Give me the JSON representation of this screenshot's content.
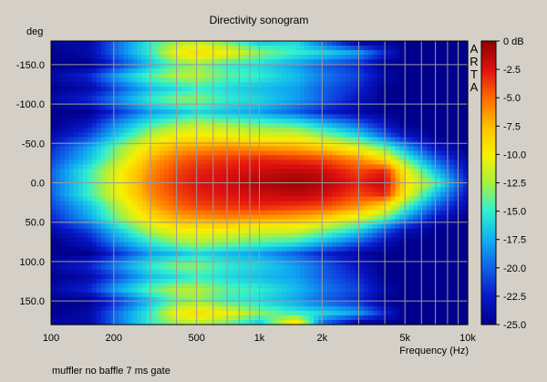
{
  "chart_data": {
    "type": "heatmap",
    "title": "Directivity sonogram",
    "xlabel": "Frequency (Hz)",
    "ylabel": "deg",
    "x_scale": "log",
    "xlim": [
      100,
      10000
    ],
    "ylim": [
      -180,
      180
    ],
    "x_ticks": [
      {
        "value": 100,
        "label": "100"
      },
      {
        "value": 200,
        "label": "200"
      },
      {
        "value": 500,
        "label": "500"
      },
      {
        "value": 1000,
        "label": "1k"
      },
      {
        "value": 2000,
        "label": "2k"
      },
      {
        "value": 5000,
        "label": "5k"
      },
      {
        "value": 10000,
        "label": "10k"
      }
    ],
    "y_ticks": [
      {
        "value": -150,
        "label": "-150.0"
      },
      {
        "value": -100,
        "label": "-100.0"
      },
      {
        "value": -50,
        "label": "-50.0"
      },
      {
        "value": 0,
        "label": "0.0"
      },
      {
        "value": 50,
        "label": "50.0"
      },
      {
        "value": 100,
        "label": "100.0"
      },
      {
        "value": 150,
        "label": "150.0"
      }
    ],
    "grid": true,
    "colorbar": {
      "range_db": [
        -25,
        0
      ],
      "ticks": [
        {
          "value": 0,
          "label": "0 dB"
        },
        {
          "value": -2.5,
          "label": "-2.5"
        },
        {
          "value": -5,
          "label": "-5.0"
        },
        {
          "value": -7.5,
          "label": "-7.5"
        },
        {
          "value": -10,
          "label": "-10.0"
        },
        {
          "value": -12.5,
          "label": "-12.5"
        },
        {
          "value": -15,
          "label": "-15.0"
        },
        {
          "value": -17.5,
          "label": "-17.5"
        },
        {
          "value": -20,
          "label": "-20.0"
        },
        {
          "value": -22.5,
          "label": "-22.5"
        },
        {
          "value": -25,
          "label": "-25.0"
        }
      ],
      "colors": [
        "#8b0000",
        "#e01010",
        "#ff6a00",
        "#ffc000",
        "#f8f000",
        "#a8f040",
        "#30f0d0",
        "#10b0f0",
        "#1060e8",
        "#0818c8",
        "#00008c"
      ]
    },
    "frequencies_hz": [
      100,
      150,
      200,
      300,
      400,
      500,
      700,
      1000,
      1500,
      2000,
      3000,
      4000,
      5000,
      7000,
      10000
    ],
    "angles_deg": [
      -180,
      -165,
      -150,
      -135,
      -120,
      -105,
      -90,
      -75,
      -60,
      -45,
      -30,
      -15,
      0,
      15,
      30,
      45,
      60,
      75,
      90,
      105,
      120,
      135,
      150,
      165,
      180
    ],
    "levels_db": [
      [
        -24,
        -24,
        -20,
        -15,
        -13,
        -12,
        -14,
        -17,
        -16,
        -20,
        -25,
        -25,
        -25,
        -25,
        -25
      ],
      [
        -25,
        -24,
        -20,
        -15,
        -10,
        -9,
        -10,
        -13,
        -15,
        -16,
        -18,
        -22,
        -25,
        -25,
        -25
      ],
      [
        -25,
        -25,
        -22,
        -17,
        -14,
        -13,
        -15,
        -16,
        -18,
        -20,
        -22,
        -25,
        -25,
        -25,
        -25
      ],
      [
        -24,
        -22,
        -18,
        -14,
        -12,
        -12,
        -14,
        -15,
        -17,
        -19,
        -21,
        -24,
        -25,
        -25,
        -25
      ],
      [
        -25,
        -24,
        -21,
        -17,
        -16,
        -15,
        -16,
        -17,
        -18,
        -20,
        -22,
        -25,
        -25,
        -25,
        -25
      ],
      [
        -24,
        -22,
        -19,
        -15,
        -13,
        -13,
        -15,
        -16,
        -18,
        -20,
        -23,
        -25,
        -25,
        -25,
        -25
      ],
      [
        -25,
        -25,
        -22,
        -18,
        -17,
        -16,
        -17,
        -18,
        -20,
        -22,
        -24,
        -25,
        -25,
        -25,
        -25
      ],
      [
        -25,
        -23,
        -19,
        -15,
        -13,
        -12,
        -13,
        -14,
        -15,
        -17,
        -20,
        -23,
        -25,
        -25,
        -25
      ],
      [
        -24,
        -21,
        -17,
        -12,
        -10,
        -10,
        -10,
        -11,
        -11,
        -13,
        -16,
        -20,
        -23,
        -25,
        -25
      ],
      [
        -22,
        -18,
        -14,
        -9,
        -7,
        -6.5,
        -6,
        -6.5,
        -7,
        -8,
        -11,
        -14,
        -18,
        -23,
        -25
      ],
      [
        -21,
        -17,
        -13,
        -7,
        -5,
        -4,
        -3.5,
        -3,
        -3.5,
        -4,
        -6,
        -9,
        -14,
        -20,
        -24
      ],
      [
        -20,
        -15,
        -11,
        -6,
        -4,
        -3,
        -2.5,
        -2,
        -1.5,
        -2,
        -4,
        -3,
        -10,
        -17,
        -23
      ],
      [
        -20,
        -15,
        -11,
        -5.5,
        -3.5,
        -2.5,
        -2,
        -1,
        -0.5,
        -1,
        -3,
        -1.5,
        -9,
        -14,
        -22
      ],
      [
        -20,
        -15,
        -11,
        -6,
        -4,
        -3,
        -2.5,
        -2,
        -1.5,
        -2,
        -4,
        -3,
        -10,
        -17,
        -23
      ],
      [
        -21,
        -17,
        -13,
        -7,
        -5,
        -4,
        -3.5,
        -3,
        -3.5,
        -4,
        -6,
        -9,
        -14,
        -20,
        -24
      ],
      [
        -22,
        -18,
        -14,
        -9,
        -7,
        -6.5,
        -6,
        -6.5,
        -7,
        -8,
        -11,
        -14,
        -18,
        -23,
        -25
      ],
      [
        -24,
        -21,
        -17,
        -12,
        -10,
        -10,
        -10,
        -11,
        -11,
        -13,
        -16,
        -20,
        -23,
        -25,
        -25
      ],
      [
        -25,
        -23,
        -19,
        -15,
        -13,
        -12,
        -13,
        -14,
        -15,
        -17,
        -20,
        -23,
        -25,
        -25,
        -25
      ],
      [
        -25,
        -25,
        -22,
        -18,
        -17,
        -16,
        -17,
        -18,
        -20,
        -22,
        -24,
        -25,
        -25,
        -25,
        -25
      ],
      [
        -24,
        -22,
        -19,
        -15,
        -13,
        -13,
        -15,
        -16,
        -18,
        -20,
        -23,
        -25,
        -25,
        -25,
        -25
      ],
      [
        -25,
        -24,
        -21,
        -17,
        -16,
        -15,
        -16,
        -17,
        -18,
        -20,
        -22,
        -25,
        -25,
        -25,
        -25
      ],
      [
        -24,
        -22,
        -18,
        -14,
        -12,
        -12,
        -14,
        -15,
        -17,
        -19,
        -21,
        -24,
        -25,
        -25,
        -25
      ],
      [
        -25,
        -25,
        -22,
        -17,
        -14,
        -13,
        -15,
        -16,
        -18,
        -20,
        -22,
        -25,
        -25,
        -25,
        -25
      ],
      [
        -25,
        -24,
        -20,
        -15,
        -10,
        -9,
        -10,
        -13,
        -15,
        -16,
        -18,
        -22,
        -25,
        -25,
        -25
      ],
      [
        -24,
        -24,
        -20,
        -15,
        -13,
        -12,
        -14,
        -17,
        -8,
        -20,
        -25,
        -25,
        -25,
        -25,
        -25
      ]
    ]
  },
  "watermark": [
    "A",
    "R",
    "T",
    "A"
  ],
  "footnote": "muffler no baffle 7 ms gate"
}
